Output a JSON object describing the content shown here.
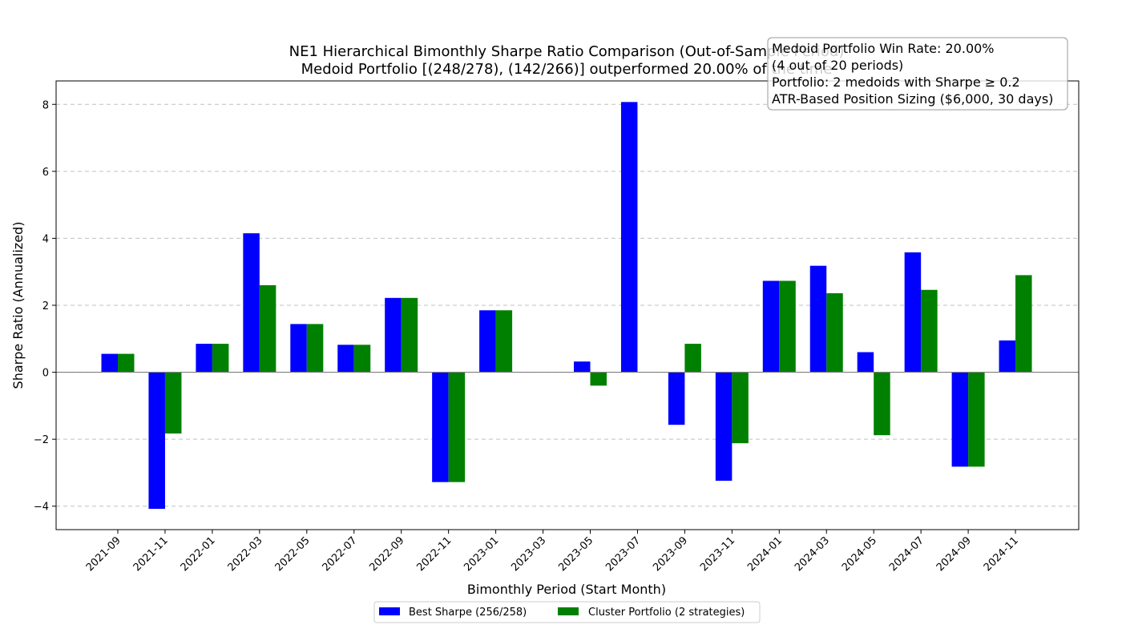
{
  "chart_data": {
    "type": "bar",
    "title_lines": [
      "NE1 Hierarchical Bimonthly Sharpe Ratio Comparison (Out-of-Sample Period)",
      "Medoid Portfolio [(248/278), (142/266)] outperformed 20.00% of the time"
    ],
    "xlabel": "Bimonthly Period (Start Month)",
    "ylabel": "Sharpe Ratio (Annualized)",
    "ylim": [
      -4.7,
      8.7
    ],
    "yticks": [
      -4,
      -2,
      0,
      2,
      4,
      6,
      8
    ],
    "ytick_labels": [
      "−4",
      "−2",
      "0",
      "2",
      "4",
      "6",
      "8"
    ],
    "grid": "y-dashed",
    "legend_position": "bottom-center",
    "categories": [
      "2021-09",
      "2021-11",
      "2022-01",
      "2022-03",
      "2022-05",
      "2022-07",
      "2022-09",
      "2022-11",
      "2023-01",
      "2023-03",
      "2023-05",
      "2023-07",
      "2023-09",
      "2023-11",
      "2024-01",
      "2024-03",
      "2024-05",
      "2024-07",
      "2024-09",
      "2024-11"
    ],
    "series": [
      {
        "name": "Best Sharpe (256/258)",
        "color": "#0000ff",
        "values": [
          0.55,
          -4.08,
          0.85,
          4.15,
          1.44,
          0.82,
          2.22,
          -3.28,
          1.85,
          0,
          0.32,
          8.07,
          -1.57,
          -3.24,
          2.73,
          3.18,
          0.6,
          3.58,
          -2.82,
          0.95
        ]
      },
      {
        "name": "Cluster Portfolio (2 strategies)",
        "color": "#008000",
        "values": [
          0.55,
          -1.83,
          0.85,
          2.6,
          1.44,
          0.82,
          2.22,
          -3.28,
          1.85,
          0,
          -0.4,
          0,
          0.85,
          -2.12,
          2.73,
          2.36,
          -1.88,
          2.46,
          -2.82,
          2.9
        ]
      }
    ],
    "annotation_lines": [
      "Medoid Portfolio Win Rate: 20.00%",
      "(4 out of 20 periods)",
      "Portfolio: 2 medoids with Sharpe ≥ 0.2",
      "ATR-Based Position Sizing ($6,000, 30 days)"
    ]
  }
}
